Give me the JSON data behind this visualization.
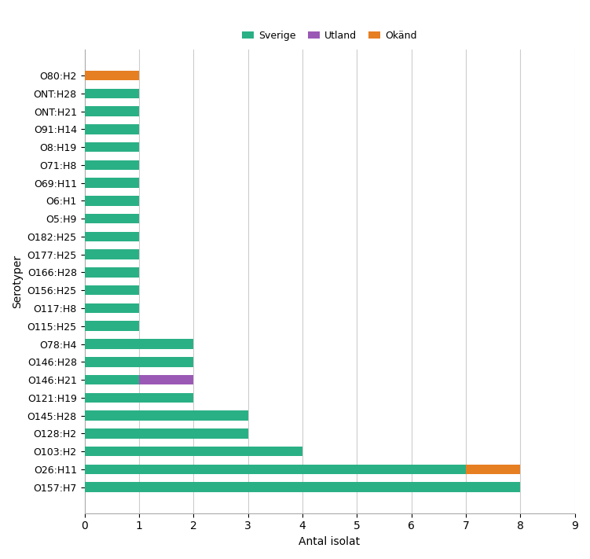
{
  "categories": [
    "O157:H7",
    "O26:H11",
    "O103:H2",
    "O128:H2",
    "O145:H28",
    "O121:H19",
    "O146:H21",
    "O146:H28",
    "O78:H4",
    "O115:H25",
    "O117:H8",
    "O156:H25",
    "O166:H28",
    "O177:H25",
    "O182:H25",
    "O5:H9",
    "O6:H1",
    "O69:H11",
    "O71:H8",
    "O8:H19",
    "O91:H14",
    "ONT:H21",
    "ONT:H28",
    "O80:H2"
  ],
  "sverige": [
    8,
    7,
    4,
    3,
    3,
    2,
    1,
    2,
    2,
    1,
    1,
    1,
    1,
    1,
    1,
    1,
    1,
    1,
    1,
    1,
    1,
    1,
    1,
    0
  ],
  "utland": [
    0,
    0,
    0,
    0,
    0,
    0,
    1,
    0,
    0,
    0,
    0,
    0,
    0,
    0,
    0,
    0,
    0,
    0,
    0,
    0,
    0,
    0,
    0,
    0
  ],
  "okand": [
    0,
    1,
    0,
    0,
    0,
    0,
    0,
    0,
    0,
    0,
    0,
    0,
    0,
    0,
    0,
    0,
    0,
    0,
    0,
    0,
    0,
    0,
    0,
    1
  ],
  "color_sverige": "#2ab085",
  "color_utland": "#9b59b6",
  "color_okand": "#e67e22",
  "xlabel": "Antal isolat",
  "ylabel": "Serotyper",
  "xlim": [
    0,
    9
  ],
  "xticks": [
    0,
    1,
    2,
    3,
    4,
    5,
    6,
    7,
    8,
    9
  ],
  "legend_labels": [
    "Sverige",
    "Utland",
    "Okänd"
  ],
  "background_color": "#ffffff",
  "grid_color": "#cccccc"
}
